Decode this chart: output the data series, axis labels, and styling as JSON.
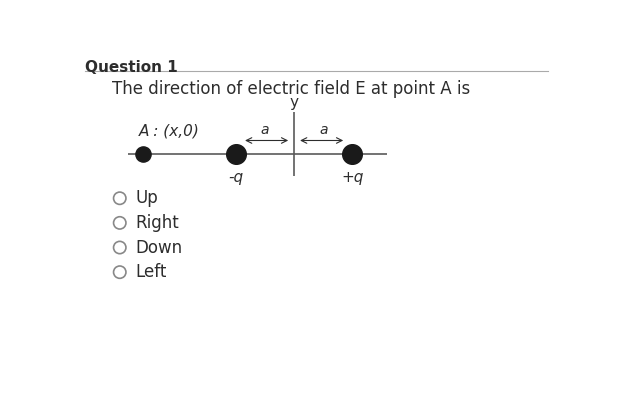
{
  "title": "Question 1",
  "question_text": "The direction of electric field E at point A is",
  "point_A_label": "A : (x,0)",
  "charge_neg_label": "-q",
  "charge_pos_label": "+q",
  "distance_label": "a",
  "y_axis_label": "y",
  "options": [
    "Up",
    "Right",
    "Down",
    "Left"
  ],
  "bg_color": "#ffffff",
  "text_color": "#2d2d2d",
  "line_color": "#5a5a5a",
  "charge_color": "#1a1a1a",
  "title_fontsize": 11,
  "question_fontsize": 12,
  "label_fontsize": 11,
  "option_fontsize": 12
}
